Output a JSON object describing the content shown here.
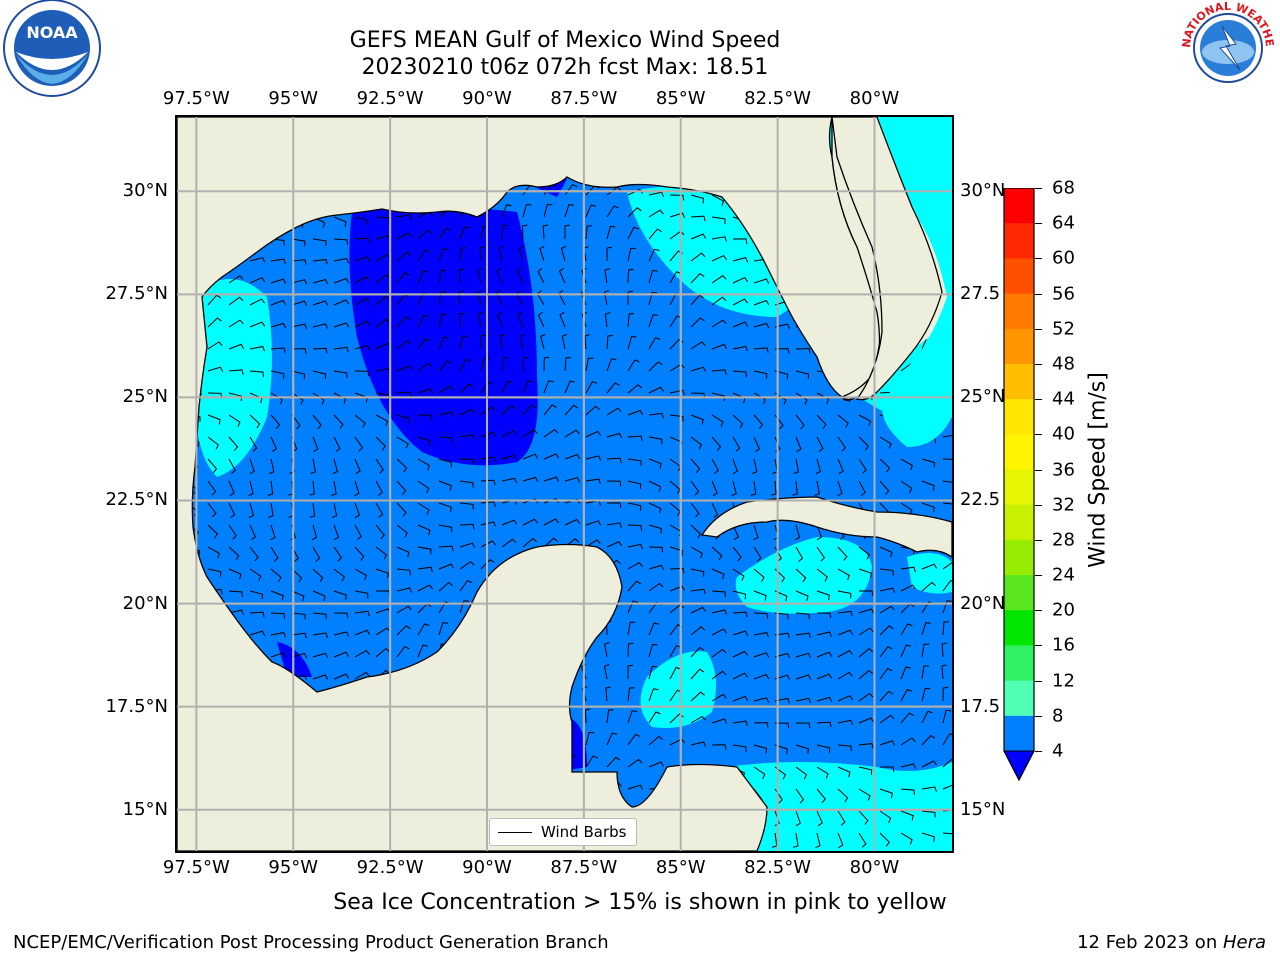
{
  "header": {
    "title_line1": "GEFS MEAN Gulf of Mexico Wind Speed",
    "title_line2": "20230210 t06z 072h fcst   Max: 18.51"
  },
  "axes": {
    "lon_labels": [
      "97.5°W",
      "95°W",
      "92.5°W",
      "90°W",
      "87.5°W",
      "85°W",
      "82.5°W",
      "80°W"
    ],
    "lon_values": [
      -97.5,
      -95,
      -92.5,
      -90,
      -87.5,
      -85,
      -82.5,
      -80
    ],
    "lat_labels_left": [
      "30°N",
      "27.5°N",
      "25°N",
      "22.5°N",
      "20°N",
      "17.5°N",
      "15°N"
    ],
    "lat_labels_right": [
      "30°N",
      "27.5",
      "25°N",
      "22.5",
      "20°N",
      "17.5",
      "15°N"
    ],
    "lat_values": [
      30,
      27.5,
      25,
      22.5,
      20,
      17.5,
      15
    ],
    "lon_range": [
      -98,
      -78
    ],
    "lat_range": [
      14,
      31.8
    ]
  },
  "legend": {
    "wind_barbs_label": "Wind Barbs"
  },
  "colorbar": {
    "label": "Wind Speed [m/s]",
    "ticks": [
      "68",
      "64",
      "60",
      "56",
      "52",
      "48",
      "44",
      "40",
      "36",
      "32",
      "28",
      "24",
      "20",
      "16",
      "12",
      "8",
      "4"
    ],
    "colors": [
      "#ff0000",
      "#ff2800",
      "#ff5000",
      "#ff7800",
      "#ff9600",
      "#ffbe00",
      "#ffe600",
      "#fff500",
      "#e6f500",
      "#c8f000",
      "#96eb00",
      "#5ae61e",
      "#00e600",
      "#32f064",
      "#50ffb4",
      "#96ffff",
      "#00ffff",
      "#0080ff"
    ],
    "under_color": "#0000ff"
  },
  "caption": "Sea Ice Concentration > 15% is shown in pink to yellow",
  "footer": {
    "left": "NCEP/EMC/Verification Post Processing Product Generation Branch",
    "right_date": "12 Feb 2023 on ",
    "right_host": "Hera"
  },
  "logos": {
    "noaa_text": "NOAA",
    "nws_text": "NATIONAL WEATHER SERVICE"
  },
  "colors": {
    "land": "#eeeedd",
    "ocean_4_8": "#0080ff",
    "ocean_8_12": "#00ffff",
    "ocean_under_4": "#0000ff",
    "grid": "#b0b0b0"
  }
}
